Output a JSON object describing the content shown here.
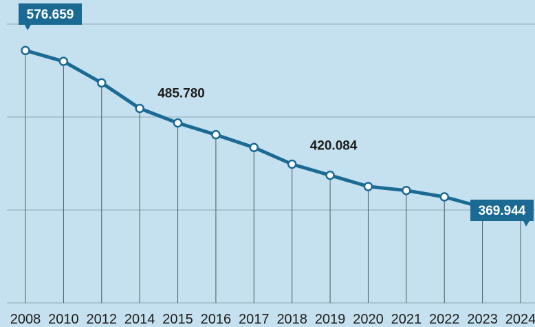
{
  "chart_data": {
    "type": "line",
    "x": [
      "2008",
      "2010",
      "2012",
      "2014",
      "2015",
      "2016",
      "2017",
      "2018",
      "2019",
      "2020",
      "2021",
      "2022",
      "2023",
      "2024"
    ],
    "series": [
      {
        "values": [
          576.659,
          563,
          536,
          504,
          485.78,
          471,
          455,
          434,
          420.084,
          406,
          401,
          393,
          380,
          369.944
        ]
      }
    ],
    "annotations": [
      {
        "x": "2008",
        "text": "576.659",
        "style": "boxed"
      },
      {
        "x": "2015",
        "text": "485.780",
        "style": "plain"
      },
      {
        "x": "2019",
        "text": "420.084",
        "style": "plain"
      },
      {
        "x": "2024",
        "text": "369.944",
        "style": "boxed"
      }
    ],
    "ylim": [
      260,
      640
    ],
    "grid": true,
    "colors": {
      "background": "#c5e0ee",
      "line": "#1b6a94",
      "marker_fill": "#ffffff",
      "label_box": "#1b6a94",
      "gridline": "#8aa7b8",
      "dropline": "#4b5b66",
      "text": "#1d1d1d"
    }
  }
}
